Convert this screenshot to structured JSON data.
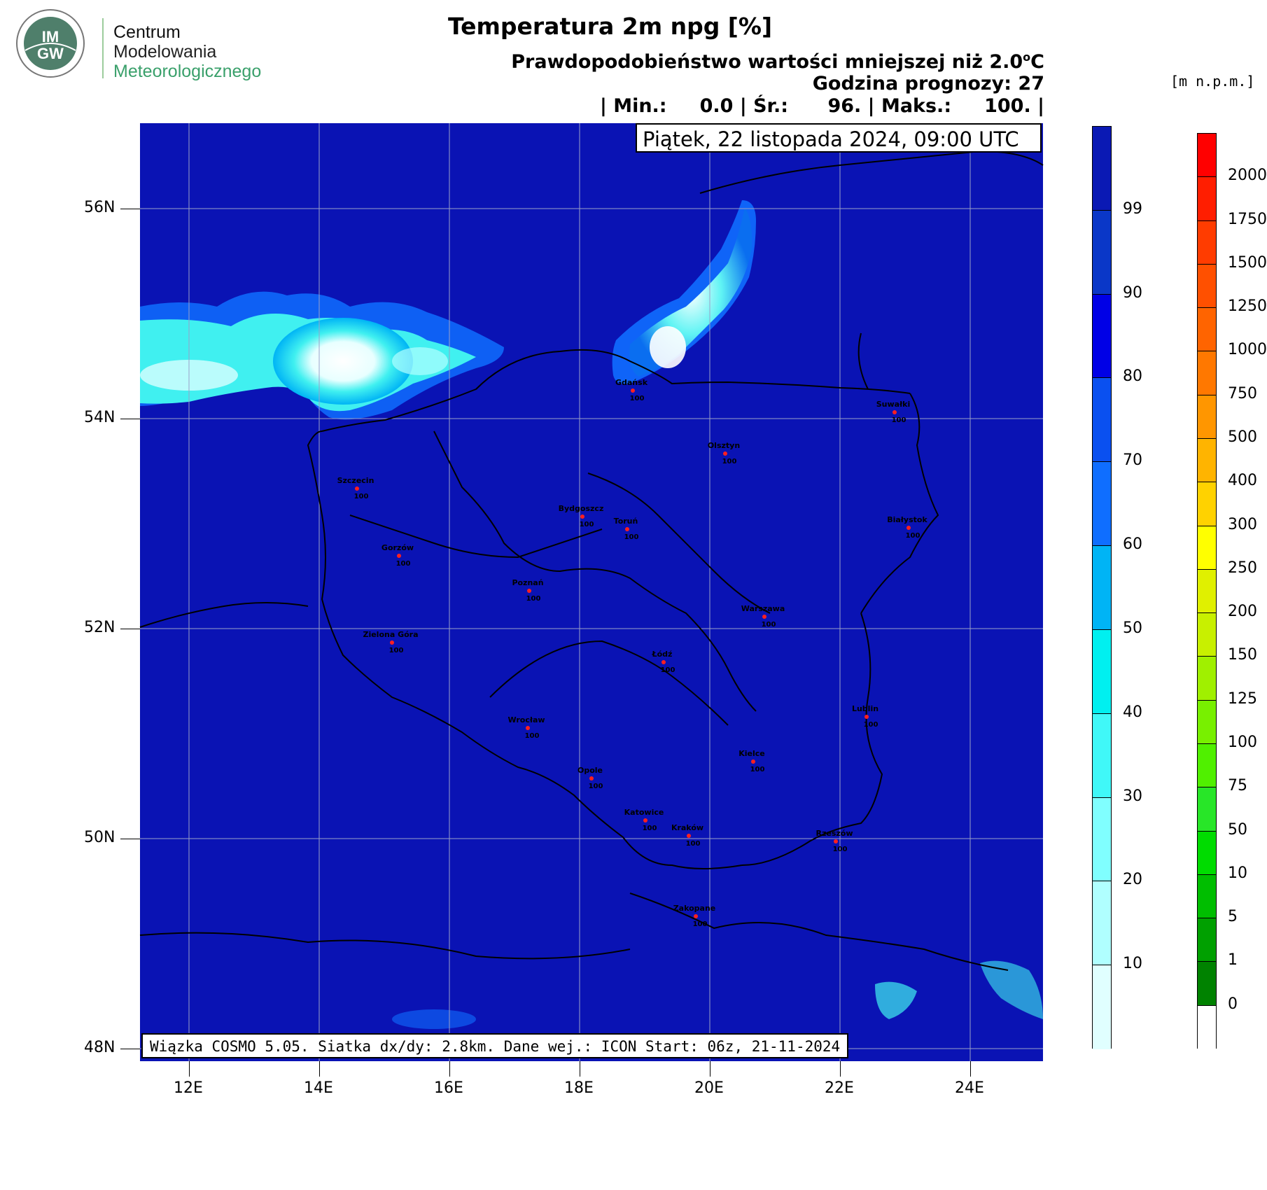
{
  "logo": {
    "initials_top": "IM",
    "initials_bottom": "GW",
    "org_lines": [
      "Centrum",
      "Modelowania",
      "Meteorologicznego"
    ]
  },
  "header": {
    "title": "Temperatura 2m npg [%]",
    "subtitle_main": "Prawdopodobieństwo wartości mniejszej niż 2.0",
    "subtitle_deg": "o",
    "subtitle_unit": "C",
    "forecast_hour": "Godzina prognozy: 27",
    "stats": "| Min.:     0.0 | Śr.:      96. | Maks.:     100. |"
  },
  "date": "Piątek, 22 listopada 2024, 09:00 UTC",
  "footer_note": "Wiązka COSMO 5.05. Siatka dx/dy: 2.8km. Dane wej.: ICON Start: 06z, 21-11-2024",
  "axes": {
    "lat_labels": [
      "56N",
      "54N",
      "52N",
      "50N",
      "48N"
    ],
    "lon_labels": [
      "12E",
      "14E",
      "16E",
      "18E",
      "20E",
      "22E",
      "24E"
    ]
  },
  "cities": [
    {
      "name": "Gdańsk",
      "value": "100"
    },
    {
      "name": "Suwałki",
      "value": "100"
    },
    {
      "name": "Olsztyn",
      "value": "100"
    },
    {
      "name": "Szczecin",
      "value": "100"
    },
    {
      "name": "Bydgoszcz",
      "value": "100"
    },
    {
      "name": "Toruń",
      "value": "100"
    },
    {
      "name": "Białystok",
      "value": "100"
    },
    {
      "name": "Gorzów",
      "value": "100"
    },
    {
      "name": "Poznań",
      "value": "100"
    },
    {
      "name": "Warszawa",
      "value": "100"
    },
    {
      "name": "Zielona Góra",
      "value": "100"
    },
    {
      "name": "Łódź",
      "value": "100"
    },
    {
      "name": "Lublin",
      "value": "100"
    },
    {
      "name": "Wrocław",
      "value": "100"
    },
    {
      "name": "Kielce",
      "value": "100"
    },
    {
      "name": "Opole",
      "value": "100"
    },
    {
      "name": "Katowice",
      "value": "100"
    },
    {
      "name": "Kraków",
      "value": "100"
    },
    {
      "name": "Rzeszów",
      "value": "100"
    },
    {
      "name": "Zakopane",
      "value": "100"
    }
  ],
  "colorbar_prob": {
    "labels": [
      "99",
      "90",
      "80",
      "70",
      "60",
      "50",
      "40",
      "30",
      "20",
      "10"
    ],
    "colors": [
      "#0a19b4",
      "#0a37c8",
      "#0000e6",
      "#0a50f0",
      "#0f6eff",
      "#00b4f5",
      "#00f0f0",
      "#40f8f8",
      "#80ffff",
      "#b0ffff",
      "#e0ffff"
    ]
  },
  "colorbar_elev": {
    "units": "[m n.p.m.]",
    "labels": [
      "2000",
      "1750",
      "1500",
      "1250",
      "1000",
      "750",
      "500",
      "400",
      "300",
      "250",
      "200",
      "150",
      "125",
      "100",
      "75",
      "50",
      "10",
      "5",
      "1",
      "0"
    ],
    "colors": [
      "#ff0000",
      "#ff1e00",
      "#ff3c00",
      "#ff5000",
      "#ff6400",
      "#ff7800",
      "#ff9600",
      "#ffb400",
      "#ffd200",
      "#ffff00",
      "#e0f000",
      "#c8f000",
      "#a0f000",
      "#78f000",
      "#50f000",
      "#28e628",
      "#00dc00",
      "#00be00",
      "#00a000",
      "#008200",
      "#ffffff"
    ]
  }
}
